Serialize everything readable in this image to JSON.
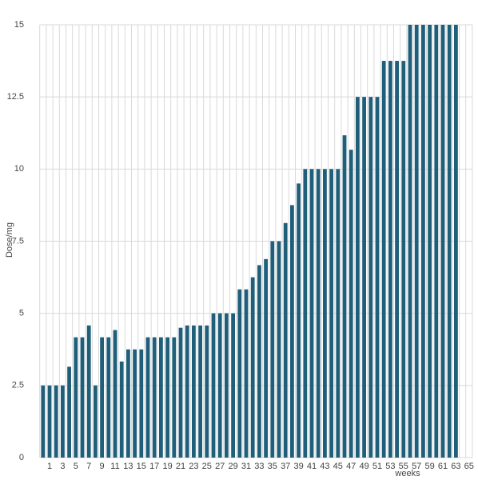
{
  "chart_data": {
    "type": "bar",
    "x_label": "weeks",
    "y_label": "Dose/mg",
    "categories": [
      null,
      "1",
      null,
      "3",
      null,
      "5",
      null,
      "7",
      null,
      "9",
      null,
      "11",
      null,
      "13",
      null,
      "15",
      null,
      "17",
      null,
      "19",
      null,
      "21",
      null,
      "23",
      null,
      "25",
      null,
      "27",
      null,
      "29",
      null,
      "31",
      null,
      "33",
      null,
      "35",
      null,
      "37",
      null,
      "39",
      null,
      "41",
      null,
      "43",
      null,
      "45",
      null,
      "47",
      null,
      "49",
      null,
      "51",
      null,
      "53",
      null,
      "55",
      null,
      "57",
      null,
      "59",
      null,
      "61",
      null,
      "63",
      null,
      "65"
    ],
    "values": [
      2.5,
      2.5,
      2.5,
      2.5,
      3.15,
      4.17,
      4.17,
      4.58,
      2.5,
      4.17,
      4.17,
      4.42,
      3.33,
      3.75,
      3.75,
      3.75,
      4.17,
      4.17,
      4.17,
      4.17,
      4.17,
      4.5,
      4.58,
      4.58,
      4.58,
      4.58,
      5,
      5,
      5,
      5,
      5.83,
      5.83,
      6.25,
      6.67,
      6.88,
      7.5,
      7.5,
      8.13,
      8.75,
      9.5,
      10,
      10,
      10,
      10,
      10,
      10,
      11.17,
      10.67,
      12.5,
      12.5,
      12.5,
      12.5,
      13.75,
      13.75,
      13.75,
      13.75,
      15,
      15,
      15,
      15,
      15,
      15,
      15,
      15,
      null,
      null
    ],
    "color": "#1f5f7a",
    "ylim": [
      0,
      15
    ],
    "yticks": [
      0,
      2.5,
      5,
      7.5,
      10,
      12.5,
      15
    ],
    "grid": true
  }
}
